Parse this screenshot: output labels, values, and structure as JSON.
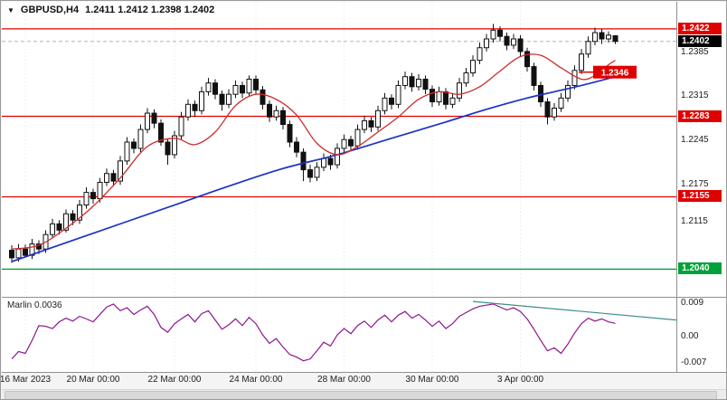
{
  "header": {
    "dropdown_icon": "▼",
    "symbol": "GBPUSD,H4",
    "quotes": "1.2411 1.2412 1.2398 1.2402"
  },
  "chart_data": {
    "type": "candlestick",
    "title": "GBPUSD,H4",
    "symbol": "GBPUSD",
    "timeframe": "H4",
    "current_quote": {
      "open": 1.2411,
      "high": 1.2412,
      "low": 1.2398,
      "close": 1.2402
    },
    "price_pane": {
      "ylim": [
        1.1996,
        1.2465
      ],
      "axis_ticks": [
        "1.2385",
        "1.2315",
        "1.2245",
        "1.2175",
        "1.2115"
      ],
      "axis_tick_values": [
        1.2385,
        1.2315,
        1.2245,
        1.2175,
        1.2115
      ],
      "levels": [
        {
          "price": 1.2422,
          "tag": "1.2422",
          "color": "#df0000",
          "kind": "resistance"
        },
        {
          "price": 1.2283,
          "tag": "1.2283",
          "color": "#df0000",
          "kind": "support"
        },
        {
          "price": 1.2155,
          "tag": "1.2155",
          "color": "#df0000",
          "kind": "support"
        },
        {
          "price": 1.204,
          "tag": "1.2040",
          "color": "#00a13a",
          "kind": "support"
        }
      ],
      "current_price": {
        "value": 1.2402,
        "tag": "1.2402",
        "color": "#000000"
      },
      "ma_callout": {
        "value": 1.2346,
        "tag": "1.2346",
        "color": "#df0000"
      },
      "candle_up_color": "#ffffff",
      "candle_down_color": "#111111",
      "candles": [
        [
          1.207,
          1.2078,
          1.205,
          1.2058
        ],
        [
          1.2058,
          1.208,
          1.2052,
          1.2072
        ],
        [
          1.2072,
          1.2079,
          1.2058,
          1.2062
        ],
        [
          1.2062,
          1.2088,
          1.2056,
          1.208
        ],
        [
          1.208,
          1.2086,
          1.2064,
          1.2072
        ],
        [
          1.2072,
          1.2102,
          1.2066,
          1.2095
        ],
        [
          1.2095,
          1.212,
          1.209,
          1.2112
        ],
        [
          1.2112,
          1.2118,
          1.2095,
          1.2102
        ],
        [
          1.2102,
          1.2135,
          1.2098,
          1.2128
        ],
        [
          1.2128,
          1.2134,
          1.211,
          1.2118
        ],
        [
          1.2118,
          1.215,
          1.2112,
          1.2142
        ],
        [
          1.2142,
          1.217,
          1.2136,
          1.2162
        ],
        [
          1.2162,
          1.2168,
          1.2144,
          1.2152
        ],
        [
          1.2152,
          1.2185,
          1.2146,
          1.2178
        ],
        [
          1.2178,
          1.22,
          1.2172,
          1.2192
        ],
        [
          1.2192,
          1.2198,
          1.2172,
          1.218
        ],
        [
          1.218,
          1.222,
          1.2174,
          1.2212
        ],
        [
          1.2212,
          1.225,
          1.2206,
          1.2242
        ],
        [
          1.2242,
          1.2248,
          1.2224,
          1.2232
        ],
        [
          1.2232,
          1.227,
          1.2226,
          1.2262
        ],
        [
          1.2262,
          1.2296,
          1.2256,
          1.2288
        ],
        [
          1.2288,
          1.2294,
          1.2264,
          1.2272
        ],
        [
          1.2272,
          1.2278,
          1.2236,
          1.2242
        ],
        [
          1.2242,
          1.2248,
          1.2206,
          1.2222
        ],
        [
          1.2222,
          1.226,
          1.2216,
          1.2252
        ],
        [
          1.2252,
          1.229,
          1.2246,
          1.2282
        ],
        [
          1.2282,
          1.231,
          1.2276,
          1.2302
        ],
        [
          1.2302,
          1.2308,
          1.2282,
          1.2292
        ],
        [
          1.2292,
          1.233,
          1.2286,
          1.2322
        ],
        [
          1.2322,
          1.2344,
          1.2316,
          1.2336
        ],
        [
          1.2336,
          1.2342,
          1.231,
          1.2318
        ],
        [
          1.2318,
          1.2324,
          1.2292,
          1.2302
        ],
        [
          1.2302,
          1.2326,
          1.2296,
          1.2318
        ],
        [
          1.2318,
          1.234,
          1.2312,
          1.2332
        ],
        [
          1.2332,
          1.2338,
          1.2312,
          1.232
        ],
        [
          1.232,
          1.2348,
          1.2314,
          1.2342
        ],
        [
          1.2342,
          1.2348,
          1.2318,
          1.2325
        ],
        [
          1.2325,
          1.2331,
          1.2294,
          1.2302
        ],
        [
          1.2302,
          1.2308,
          1.2274,
          1.2282
        ],
        [
          1.2282,
          1.23,
          1.2276,
          1.2292
        ],
        [
          1.2292,
          1.2298,
          1.2262,
          1.227
        ],
        [
          1.227,
          1.2276,
          1.2234,
          1.2242
        ],
        [
          1.2242,
          1.225,
          1.2218,
          1.2226
        ],
        [
          1.2226,
          1.2232,
          1.218,
          1.2198
        ],
        [
          1.2198,
          1.2206,
          1.2178,
          1.2186
        ],
        [
          1.2186,
          1.221,
          1.218,
          1.2202
        ],
        [
          1.2202,
          1.2224,
          1.2196,
          1.2216
        ],
        [
          1.2216,
          1.2222,
          1.2198,
          1.2206
        ],
        [
          1.2206,
          1.224,
          1.22,
          1.2232
        ],
        [
          1.2232,
          1.2254,
          1.2226,
          1.2246
        ],
        [
          1.2246,
          1.2252,
          1.2228,
          1.2236
        ],
        [
          1.2236,
          1.227,
          1.223,
          1.2262
        ],
        [
          1.2262,
          1.2284,
          1.2256,
          1.2276
        ],
        [
          1.2276,
          1.2282,
          1.2258,
          1.2266
        ],
        [
          1.2266,
          1.23,
          1.226,
          1.2292
        ],
        [
          1.2292,
          1.232,
          1.2286,
          1.2312
        ],
        [
          1.2312,
          1.2318,
          1.2294,
          1.2302
        ],
        [
          1.2302,
          1.234,
          1.2296,
          1.2332
        ],
        [
          1.2332,
          1.2354,
          1.2326,
          1.2346
        ],
        [
          1.2346,
          1.2352,
          1.2322,
          1.233
        ],
        [
          1.233,
          1.235,
          1.2324,
          1.2342
        ],
        [
          1.2342,
          1.2348,
          1.2318,
          1.2326
        ],
        [
          1.2326,
          1.2332,
          1.2298,
          1.2306
        ],
        [
          1.2306,
          1.233,
          1.23,
          1.2322
        ],
        [
          1.2322,
          1.2328,
          1.2294,
          1.2302
        ],
        [
          1.2302,
          1.232,
          1.2296,
          1.2312
        ],
        [
          1.2312,
          1.2344,
          1.2306,
          1.2336
        ],
        [
          1.2336,
          1.236,
          1.233,
          1.2352
        ],
        [
          1.2352,
          1.238,
          1.2346,
          1.2372
        ],
        [
          1.2372,
          1.24,
          1.2366,
          1.2392
        ],
        [
          1.2392,
          1.2414,
          1.2386,
          1.2406
        ],
        [
          1.2406,
          1.243,
          1.24,
          1.242
        ],
        [
          1.242,
          1.2426,
          1.2402,
          1.241
        ],
        [
          1.241,
          1.2416,
          1.2388,
          1.2396
        ],
        [
          1.2396,
          1.2414,
          1.239,
          1.2406
        ],
        [
          1.2406,
          1.2412,
          1.2378,
          1.2386
        ],
        [
          1.2386,
          1.2392,
          1.2354,
          1.2362
        ],
        [
          1.2362,
          1.2368,
          1.2324,
          1.2332
        ],
        [
          1.2332,
          1.2338,
          1.2298,
          1.2306
        ],
        [
          1.2306,
          1.2312,
          1.227,
          1.2282
        ],
        [
          1.2282,
          1.2304,
          1.2276,
          1.2296
        ],
        [
          1.2296,
          1.232,
          1.229,
          1.2312
        ],
        [
          1.2312,
          1.234,
          1.2306,
          1.2332
        ],
        [
          1.2332,
          1.2364,
          1.2326,
          1.2356
        ],
        [
          1.2356,
          1.239,
          1.235,
          1.2382
        ],
        [
          1.2382,
          1.241,
          1.2376,
          1.2402
        ],
        [
          1.2402,
          1.2424,
          1.2396,
          1.2416
        ],
        [
          1.2416,
          1.2422,
          1.2398,
          1.2406
        ],
        [
          1.2406,
          1.2418,
          1.24,
          1.2412
        ],
        [
          1.2411,
          1.2412,
          1.2398,
          1.2402
        ]
      ],
      "ma_blue": {
        "color": "#1b32c8",
        "points": [
          [
            0,
            1.2052
          ],
          [
            8,
            1.2082
          ],
          [
            16,
            1.2112
          ],
          [
            24,
            1.2142
          ],
          [
            32,
            1.2172
          ],
          [
            40,
            1.22
          ],
          [
            48,
            1.2222
          ],
          [
            56,
            1.2248
          ],
          [
            64,
            1.2274
          ],
          [
            70,
            1.2294
          ],
          [
            76,
            1.2312
          ],
          [
            80,
            1.2322
          ],
          [
            84,
            1.2332
          ],
          [
            89,
            1.2346
          ]
        ]
      },
      "ma_red": {
        "color": "#cf2b2b",
        "points": [
          [
            0,
            1.2072
          ],
          [
            4,
            1.2078
          ],
          [
            8,
            1.2105
          ],
          [
            12,
            1.214
          ],
          [
            16,
            1.2185
          ],
          [
            20,
            1.2235
          ],
          [
            24,
            1.2248
          ],
          [
            27,
            1.2238
          ],
          [
            30,
            1.2258
          ],
          [
            33,
            1.23
          ],
          [
            36,
            1.2318
          ],
          [
            39,
            1.231
          ],
          [
            42,
            1.2285
          ],
          [
            45,
            1.224
          ],
          [
            48,
            1.2222
          ],
          [
            51,
            1.2235
          ],
          [
            54,
            1.2258
          ],
          [
            57,
            1.2282
          ],
          [
            60,
            1.231
          ],
          [
            63,
            1.2322
          ],
          [
            66,
            1.2318
          ],
          [
            69,
            1.233
          ],
          [
            72,
            1.2355
          ],
          [
            75,
            1.2378
          ],
          [
            78,
            1.238
          ],
          [
            81,
            1.236
          ],
          [
            84,
            1.2342
          ],
          [
            86,
            1.2348
          ],
          [
            88,
            1.2365
          ],
          [
            89,
            1.2372
          ]
        ]
      }
    },
    "indicator_pane": {
      "name": "Marlin",
      "value": "0.0036",
      "ylim": [
        -0.0095,
        0.0105
      ],
      "axis_ticks": [
        {
          "v": 0.009,
          "label": "0.009"
        },
        {
          "v": 0.0,
          "label": "0.00"
        },
        {
          "v": -0.007,
          "label": "-0.007"
        }
      ],
      "line_color": "#8c1690",
      "values": [
        -0.006,
        -0.004,
        -0.0045,
        -0.001,
        0.003,
        0.0028,
        0.0022,
        0.004,
        0.005,
        0.0042,
        0.0055,
        0.0048,
        0.004,
        0.006,
        0.008,
        0.0088,
        0.007,
        0.0078,
        0.006,
        0.0072,
        0.0082,
        0.006,
        0.0025,
        0.0012,
        0.0035,
        0.0048,
        0.006,
        0.004,
        0.0062,
        0.007,
        0.0045,
        0.002,
        0.0032,
        0.0048,
        0.003,
        0.0052,
        0.0035,
        0.0005,
        -0.0018,
        -0.0005,
        -0.0028,
        -0.0048,
        -0.0055,
        -0.0065,
        -0.006,
        -0.0038,
        -0.0015,
        -0.0025,
        0.0005,
        0.0022,
        0.0008,
        0.003,
        0.0042,
        0.0025,
        0.0045,
        0.0058,
        0.004,
        0.0058,
        0.0068,
        0.005,
        0.006,
        0.0045,
        0.0028,
        0.0042,
        0.0022,
        0.0035,
        0.0055,
        0.0065,
        0.0075,
        0.0082,
        0.0085,
        0.0088,
        0.008,
        0.0072,
        0.0078,
        0.0068,
        0.0048,
        0.002,
        -0.001,
        -0.0038,
        -0.003,
        -0.0045,
        -0.002,
        0.001,
        0.0035,
        0.005,
        0.0042,
        0.0048,
        0.004,
        0.0036
      ],
      "trendline": {
        "color": "#3f8e8e",
        "points": [
          [
            68,
            0.0095
          ],
          [
            98,
            0.0045
          ]
        ]
      }
    },
    "x_axis": {
      "grid": true,
      "labels": [
        {
          "text": "16 Mar 2023",
          "index": 2
        },
        {
          "text": "20 Mar 00:00",
          "index": 12
        },
        {
          "text": "22 Mar 00:00",
          "index": 24
        },
        {
          "text": "24 Mar 00:00",
          "index": 36
        },
        {
          "text": "28 Mar 00:00",
          "index": 49
        },
        {
          "text": "30 Mar 00:00",
          "index": 62
        },
        {
          "text": "3 Apr 00:00",
          "index": 75
        }
      ]
    }
  }
}
